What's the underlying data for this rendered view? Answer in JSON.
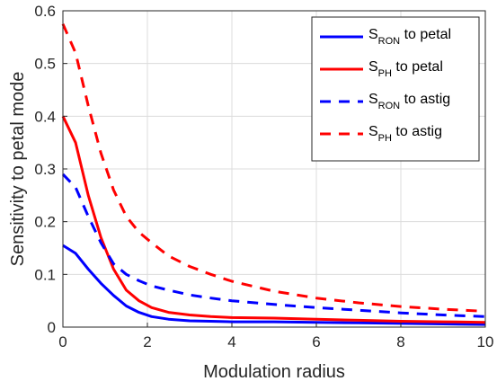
{
  "chart_data": {
    "type": "line",
    "xlabel": "Modulation radius",
    "ylabel": "Sensitivity to petal mode",
    "xlim": [
      0,
      10
    ],
    "ylim": [
      0,
      0.6
    ],
    "xticks": [
      "0",
      "2",
      "4",
      "6",
      "8",
      "10"
    ],
    "yticks": [
      "0",
      "0.1",
      "0.2",
      "0.3",
      "0.4",
      "0.5",
      "0.6"
    ],
    "grid": true,
    "legend_position": "top-right",
    "series": [
      {
        "name": "S_RON to petal",
        "label_main": "S",
        "label_sub": "RON",
        "label_rest": " to petal",
        "color": "#0000ff",
        "dash": "solid",
        "x": [
          0,
          0.3,
          0.6,
          0.9,
          1.2,
          1.5,
          1.8,
          2.1,
          2.5,
          3,
          3.5,
          4,
          5,
          6,
          7,
          8,
          9,
          10
        ],
        "y": [
          0.155,
          0.14,
          0.11,
          0.083,
          0.06,
          0.04,
          0.028,
          0.02,
          0.015,
          0.012,
          0.011,
          0.01,
          0.01,
          0.009,
          0.008,
          0.007,
          0.006,
          0.005
        ]
      },
      {
        "name": "S_PH to petal",
        "label_main": "S",
        "label_sub": "PH",
        "label_rest": " to petal",
        "color": "#ff0000",
        "dash": "solid",
        "x": [
          0,
          0.3,
          0.6,
          0.9,
          1.2,
          1.5,
          1.8,
          2.1,
          2.5,
          3,
          3.5,
          4,
          5,
          6,
          7,
          8,
          9,
          10
        ],
        "y": [
          0.4,
          0.35,
          0.25,
          0.17,
          0.11,
          0.07,
          0.05,
          0.037,
          0.028,
          0.023,
          0.02,
          0.018,
          0.017,
          0.015,
          0.013,
          0.011,
          0.01,
          0.009
        ]
      },
      {
        "name": "S_RON to astig",
        "label_main": "S",
        "label_sub": "RON",
        "label_rest": " to astig",
        "color": "#0000ff",
        "dash": "dashed",
        "x": [
          0,
          0.3,
          0.6,
          0.9,
          1.2,
          1.5,
          1.8,
          2.1,
          2.5,
          3,
          3.5,
          4,
          5,
          6,
          7,
          8,
          9,
          10
        ],
        "y": [
          0.29,
          0.265,
          0.21,
          0.16,
          0.12,
          0.1,
          0.088,
          0.078,
          0.07,
          0.061,
          0.055,
          0.05,
          0.043,
          0.037,
          0.032,
          0.027,
          0.023,
          0.02
        ]
      },
      {
        "name": "S_PH to astig",
        "label_main": "S",
        "label_sub": "PH",
        "label_rest": " to astig",
        "color": "#ff0000",
        "dash": "dashed",
        "x": [
          0,
          0.3,
          0.6,
          0.9,
          1.2,
          1.5,
          1.8,
          2.1,
          2.5,
          3,
          3.5,
          4,
          5,
          6,
          7,
          8,
          9,
          10
        ],
        "y": [
          0.575,
          0.52,
          0.42,
          0.33,
          0.26,
          0.21,
          0.18,
          0.16,
          0.135,
          0.115,
          0.1,
          0.087,
          0.068,
          0.055,
          0.046,
          0.039,
          0.034,
          0.03
        ]
      }
    ]
  }
}
